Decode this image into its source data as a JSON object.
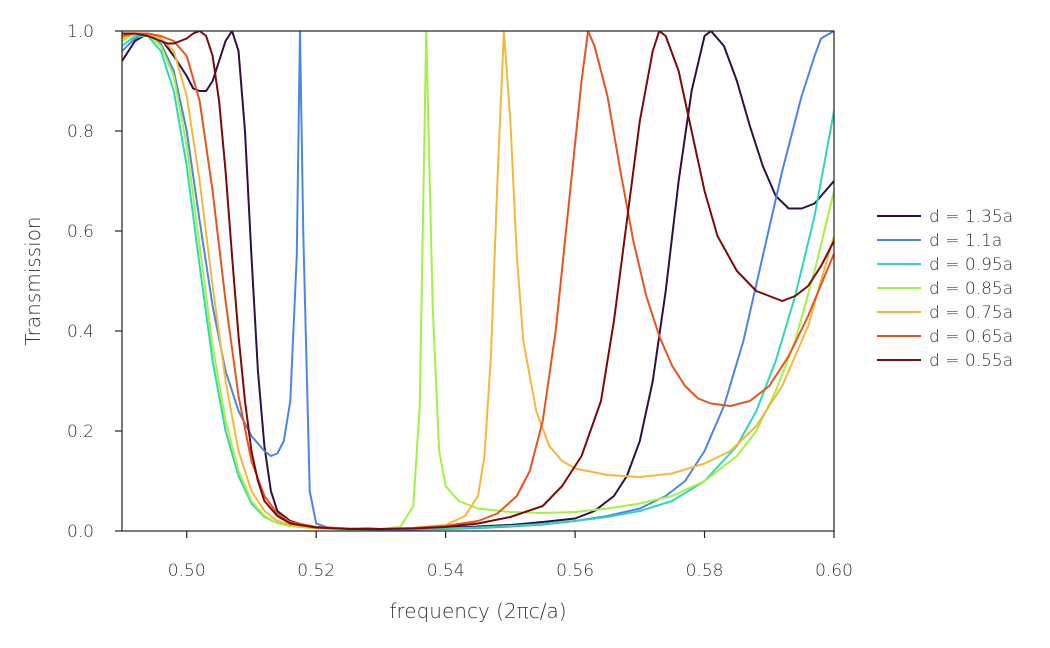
{
  "chart_data": {
    "type": "line",
    "title": "",
    "xlabel": "frequency (2πc/a)",
    "ylabel": "Transmission",
    "xlim": [
      0.49,
      0.6
    ],
    "ylim": [
      0.0,
      1.0
    ],
    "xticks": [
      0.5,
      0.52,
      0.54,
      0.56,
      0.58,
      0.6
    ],
    "xtick_labels": [
      "0.50",
      "0.52",
      "0.54",
      "0.56",
      "0.58",
      "0.60"
    ],
    "yticks": [
      0.0,
      0.2,
      0.4,
      0.6,
      0.8,
      1.0
    ],
    "ytick_labels": [
      "0.0",
      "0.2",
      "0.4",
      "0.6",
      "0.8",
      "1.0"
    ],
    "grid": false,
    "legend_position": "right",
    "series": [
      {
        "name": "d = 1.35a",
        "color": "#2d1141",
        "points": [
          [
            0.49,
            0.94
          ],
          [
            0.492,
            0.98
          ],
          [
            0.494,
            0.995
          ],
          [
            0.496,
            0.985
          ],
          [
            0.498,
            0.95
          ],
          [
            0.5,
            0.91
          ],
          [
            0.501,
            0.885
          ],
          [
            0.502,
            0.88
          ],
          [
            0.503,
            0.88
          ],
          [
            0.504,
            0.9
          ],
          [
            0.505,
            0.94
          ],
          [
            0.506,
            0.98
          ],
          [
            0.507,
            1.0
          ],
          [
            0.508,
            0.96
          ],
          [
            0.509,
            0.8
          ],
          [
            0.51,
            0.55
          ],
          [
            0.511,
            0.32
          ],
          [
            0.512,
            0.17
          ],
          [
            0.513,
            0.08
          ],
          [
            0.514,
            0.04
          ],
          [
            0.516,
            0.02
          ],
          [
            0.518,
            0.012
          ],
          [
            0.52,
            0.008
          ],
          [
            0.525,
            0.004
          ],
          [
            0.53,
            0.003
          ],
          [
            0.535,
            0.004
          ],
          [
            0.54,
            0.006
          ],
          [
            0.545,
            0.009
          ],
          [
            0.55,
            0.012
          ],
          [
            0.555,
            0.018
          ],
          [
            0.56,
            0.025
          ],
          [
            0.563,
            0.04
          ],
          [
            0.566,
            0.07
          ],
          [
            0.568,
            0.11
          ],
          [
            0.57,
            0.18
          ],
          [
            0.572,
            0.3
          ],
          [
            0.574,
            0.48
          ],
          [
            0.576,
            0.7
          ],
          [
            0.578,
            0.88
          ],
          [
            0.58,
            0.99
          ],
          [
            0.581,
            1.0
          ],
          [
            0.583,
            0.97
          ],
          [
            0.585,
            0.9
          ],
          [
            0.587,
            0.81
          ],
          [
            0.589,
            0.73
          ],
          [
            0.591,
            0.67
          ],
          [
            0.593,
            0.645
          ],
          [
            0.595,
            0.645
          ],
          [
            0.597,
            0.655
          ],
          [
            0.599,
            0.685
          ],
          [
            0.6,
            0.7
          ]
        ]
      },
      {
        "name": "d = 1.1a",
        "color": "#4a86e8",
        "points": [
          [
            0.49,
            0.96
          ],
          [
            0.492,
            0.985
          ],
          [
            0.494,
            0.995
          ],
          [
            0.496,
            0.975
          ],
          [
            0.498,
            0.92
          ],
          [
            0.5,
            0.8
          ],
          [
            0.502,
            0.62
          ],
          [
            0.504,
            0.45
          ],
          [
            0.506,
            0.32
          ],
          [
            0.508,
            0.24
          ],
          [
            0.51,
            0.19
          ],
          [
            0.512,
            0.16
          ],
          [
            0.513,
            0.15
          ],
          [
            0.514,
            0.155
          ],
          [
            0.515,
            0.18
          ],
          [
            0.516,
            0.26
          ],
          [
            0.517,
            0.55
          ],
          [
            0.5175,
            1.0
          ],
          [
            0.518,
            0.6
          ],
          [
            0.519,
            0.08
          ],
          [
            0.52,
            0.015
          ],
          [
            0.522,
            0.006
          ],
          [
            0.525,
            0.004
          ],
          [
            0.53,
            0.003
          ],
          [
            0.535,
            0.003
          ],
          [
            0.54,
            0.004
          ],
          [
            0.545,
            0.006
          ],
          [
            0.55,
            0.009
          ],
          [
            0.555,
            0.013
          ],
          [
            0.56,
            0.02
          ],
          [
            0.565,
            0.03
          ],
          [
            0.57,
            0.045
          ],
          [
            0.574,
            0.07
          ],
          [
            0.577,
            0.1
          ],
          [
            0.58,
            0.16
          ],
          [
            0.583,
            0.25
          ],
          [
            0.586,
            0.38
          ],
          [
            0.589,
            0.55
          ],
          [
            0.592,
            0.72
          ],
          [
            0.595,
            0.87
          ],
          [
            0.597,
            0.95
          ],
          [
            0.598,
            0.985
          ],
          [
            0.6,
            1.0
          ]
        ]
      },
      {
        "name": "d = 0.95a",
        "color": "#2ed8b6",
        "points": [
          [
            0.49,
            0.97
          ],
          [
            0.492,
            0.99
          ],
          [
            0.494,
            0.99
          ],
          [
            0.496,
            0.96
          ],
          [
            0.498,
            0.88
          ],
          [
            0.5,
            0.73
          ],
          [
            0.502,
            0.53
          ],
          [
            0.504,
            0.34
          ],
          [
            0.506,
            0.2
          ],
          [
            0.508,
            0.11
          ],
          [
            0.51,
            0.055
          ],
          [
            0.512,
            0.028
          ],
          [
            0.514,
            0.016
          ],
          [
            0.516,
            0.01
          ],
          [
            0.52,
            0.006
          ],
          [
            0.525,
            0.004
          ],
          [
            0.528,
            0.006
          ],
          [
            0.53,
            0.004
          ],
          [
            0.535,
            0.004
          ],
          [
            0.54,
            0.005
          ],
          [
            0.545,
            0.007
          ],
          [
            0.55,
            0.01
          ],
          [
            0.555,
            0.014
          ],
          [
            0.56,
            0.02
          ],
          [
            0.565,
            0.028
          ],
          [
            0.57,
            0.04
          ],
          [
            0.575,
            0.06
          ],
          [
            0.58,
            0.1
          ],
          [
            0.585,
            0.17
          ],
          [
            0.588,
            0.24
          ],
          [
            0.591,
            0.34
          ],
          [
            0.594,
            0.47
          ],
          [
            0.597,
            0.63
          ],
          [
            0.6,
            0.84
          ]
        ]
      },
      {
        "name": "d = 0.85a",
        "color": "#a4f043",
        "points": [
          [
            0.49,
            0.98
          ],
          [
            0.492,
            0.995
          ],
          [
            0.494,
            0.995
          ],
          [
            0.496,
            0.97
          ],
          [
            0.498,
            0.91
          ],
          [
            0.5,
            0.77
          ],
          [
            0.502,
            0.57
          ],
          [
            0.504,
            0.37
          ],
          [
            0.506,
            0.22
          ],
          [
            0.508,
            0.12
          ],
          [
            0.51,
            0.06
          ],
          [
            0.512,
            0.03
          ],
          [
            0.514,
            0.016
          ],
          [
            0.516,
            0.01
          ],
          [
            0.52,
            0.005
          ],
          [
            0.525,
            0.003
          ],
          [
            0.53,
            0.004
          ],
          [
            0.533,
            0.008
          ],
          [
            0.535,
            0.05
          ],
          [
            0.536,
            0.25
          ],
          [
            0.537,
            1.0
          ],
          [
            0.538,
            0.45
          ],
          [
            0.539,
            0.16
          ],
          [
            0.54,
            0.09
          ],
          [
            0.542,
            0.06
          ],
          [
            0.545,
            0.045
          ],
          [
            0.55,
            0.038
          ],
          [
            0.555,
            0.036
          ],
          [
            0.56,
            0.038
          ],
          [
            0.565,
            0.045
          ],
          [
            0.57,
            0.055
          ],
          [
            0.575,
            0.07
          ],
          [
            0.58,
            0.1
          ],
          [
            0.585,
            0.15
          ],
          [
            0.588,
            0.2
          ],
          [
            0.591,
            0.28
          ],
          [
            0.594,
            0.38
          ],
          [
            0.597,
            0.52
          ],
          [
            0.6,
            0.68
          ]
        ]
      },
      {
        "name": "d = 0.75a",
        "color": "#f5b73b",
        "points": [
          [
            0.49,
            0.985
          ],
          [
            0.492,
            0.995
          ],
          [
            0.494,
            0.995
          ],
          [
            0.496,
            0.985
          ],
          [
            0.498,
            0.96
          ],
          [
            0.5,
            0.87
          ],
          [
            0.502,
            0.7
          ],
          [
            0.504,
            0.49
          ],
          [
            0.506,
            0.3
          ],
          [
            0.508,
            0.16
          ],
          [
            0.51,
            0.08
          ],
          [
            0.512,
            0.04
          ],
          [
            0.514,
            0.02
          ],
          [
            0.516,
            0.012
          ],
          [
            0.52,
            0.006
          ],
          [
            0.525,
            0.004
          ],
          [
            0.53,
            0.004
          ],
          [
            0.535,
            0.006
          ],
          [
            0.54,
            0.012
          ],
          [
            0.543,
            0.03
          ],
          [
            0.545,
            0.07
          ],
          [
            0.546,
            0.15
          ],
          [
            0.547,
            0.35
          ],
          [
            0.548,
            0.7
          ],
          [
            0.549,
            1.0
          ],
          [
            0.55,
            0.82
          ],
          [
            0.551,
            0.55
          ],
          [
            0.552,
            0.38
          ],
          [
            0.554,
            0.24
          ],
          [
            0.556,
            0.17
          ],
          [
            0.558,
            0.14
          ],
          [
            0.56,
            0.125
          ],
          [
            0.565,
            0.112
          ],
          [
            0.57,
            0.108
          ],
          [
            0.575,
            0.115
          ],
          [
            0.58,
            0.135
          ],
          [
            0.584,
            0.16
          ],
          [
            0.588,
            0.21
          ],
          [
            0.592,
            0.29
          ],
          [
            0.596,
            0.41
          ],
          [
            0.6,
            0.59
          ]
        ]
      },
      {
        "name": "d = 0.65a",
        "color": "#e8531e",
        "points": [
          [
            0.49,
            0.99
          ],
          [
            0.492,
            0.995
          ],
          [
            0.494,
            0.995
          ],
          [
            0.496,
            0.99
          ],
          [
            0.498,
            0.98
          ],
          [
            0.5,
            0.95
          ],
          [
            0.502,
            0.86
          ],
          [
            0.504,
            0.68
          ],
          [
            0.506,
            0.46
          ],
          [
            0.508,
            0.27
          ],
          [
            0.51,
            0.14
          ],
          [
            0.512,
            0.07
          ],
          [
            0.514,
            0.035
          ],
          [
            0.516,
            0.018
          ],
          [
            0.52,
            0.008
          ],
          [
            0.525,
            0.005
          ],
          [
            0.53,
            0.004
          ],
          [
            0.535,
            0.006
          ],
          [
            0.54,
            0.01
          ],
          [
            0.545,
            0.02
          ],
          [
            0.548,
            0.035
          ],
          [
            0.551,
            0.07
          ],
          [
            0.553,
            0.12
          ],
          [
            0.555,
            0.22
          ],
          [
            0.557,
            0.4
          ],
          [
            0.559,
            0.65
          ],
          [
            0.561,
            0.9
          ],
          [
            0.562,
            1.0
          ],
          [
            0.563,
            0.97
          ],
          [
            0.565,
            0.87
          ],
          [
            0.567,
            0.72
          ],
          [
            0.569,
            0.58
          ],
          [
            0.571,
            0.47
          ],
          [
            0.573,
            0.39
          ],
          [
            0.575,
            0.33
          ],
          [
            0.577,
            0.29
          ],
          [
            0.579,
            0.265
          ],
          [
            0.581,
            0.255
          ],
          [
            0.584,
            0.25
          ],
          [
            0.587,
            0.26
          ],
          [
            0.59,
            0.29
          ],
          [
            0.593,
            0.35
          ],
          [
            0.596,
            0.43
          ],
          [
            0.6,
            0.555
          ]
        ]
      },
      {
        "name": "d = 0.55a",
        "color": "#7a0b08",
        "points": [
          [
            0.49,
            0.995
          ],
          [
            0.492,
            0.995
          ],
          [
            0.494,
            0.99
          ],
          [
            0.496,
            0.98
          ],
          [
            0.497,
            0.975
          ],
          [
            0.498,
            0.975
          ],
          [
            0.5,
            0.985
          ],
          [
            0.501,
            0.995
          ],
          [
            0.502,
            1.0
          ],
          [
            0.503,
            0.99
          ],
          [
            0.504,
            0.95
          ],
          [
            0.505,
            0.86
          ],
          [
            0.506,
            0.72
          ],
          [
            0.507,
            0.55
          ],
          [
            0.508,
            0.39
          ],
          [
            0.509,
            0.26
          ],
          [
            0.51,
            0.16
          ],
          [
            0.511,
            0.1
          ],
          [
            0.512,
            0.06
          ],
          [
            0.514,
            0.03
          ],
          [
            0.516,
            0.015
          ],
          [
            0.52,
            0.007
          ],
          [
            0.525,
            0.004
          ],
          [
            0.53,
            0.004
          ],
          [
            0.535,
            0.005
          ],
          [
            0.54,
            0.008
          ],
          [
            0.545,
            0.015
          ],
          [
            0.55,
            0.028
          ],
          [
            0.555,
            0.05
          ],
          [
            0.558,
            0.09
          ],
          [
            0.561,
            0.15
          ],
          [
            0.564,
            0.26
          ],
          [
            0.566,
            0.42
          ],
          [
            0.568,
            0.62
          ],
          [
            0.57,
            0.82
          ],
          [
            0.572,
            0.96
          ],
          [
            0.573,
            1.0
          ],
          [
            0.574,
            0.99
          ],
          [
            0.576,
            0.92
          ],
          [
            0.578,
            0.8
          ],
          [
            0.58,
            0.68
          ],
          [
            0.582,
            0.59
          ],
          [
            0.585,
            0.52
          ],
          [
            0.588,
            0.48
          ],
          [
            0.59,
            0.47
          ],
          [
            0.592,
            0.46
          ],
          [
            0.594,
            0.47
          ],
          [
            0.596,
            0.49
          ],
          [
            0.598,
            0.53
          ],
          [
            0.6,
            0.58
          ]
        ]
      }
    ]
  }
}
